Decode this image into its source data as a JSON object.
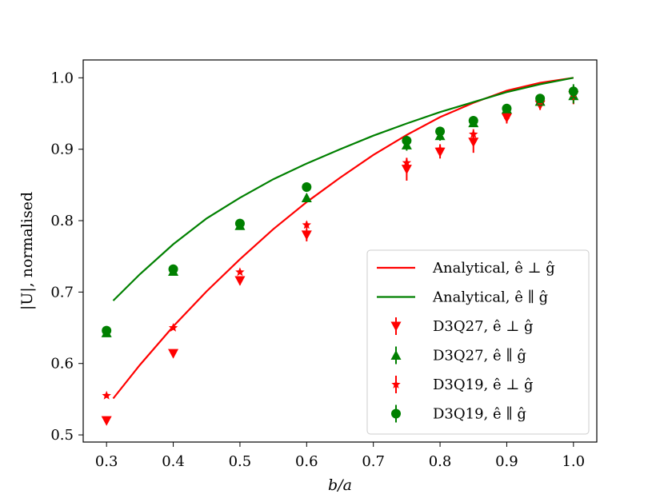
{
  "chart_data": {
    "type": "scatter",
    "title": "",
    "xlabel": "b/a",
    "ylabel": "|U|, normalised",
    "xlim": [
      0.265,
      1.035
    ],
    "ylim": [
      0.49,
      1.025
    ],
    "xticks": [
      0.3,
      0.4,
      0.5,
      0.6,
      0.7,
      0.8,
      0.9,
      1.0
    ],
    "yticks": [
      0.5,
      0.6,
      0.7,
      0.8,
      0.9,
      1.0
    ],
    "xtick_labels": [
      "0.3",
      "0.4",
      "0.5",
      "0.6",
      "0.7",
      "0.8",
      "0.9",
      "1.0"
    ],
    "ytick_labels": [
      "0.5",
      "0.6",
      "0.7",
      "0.8",
      "0.9",
      "1.0"
    ],
    "legend_position": "lower-right",
    "colors": {
      "red": "#ff0000",
      "green": "#008000"
    },
    "lines": [
      {
        "name": "Analytical, ê ⊥ ĝ",
        "color": "#ff0000",
        "x": [
          0.31,
          0.35,
          0.4,
          0.45,
          0.5,
          0.55,
          0.6,
          0.65,
          0.7,
          0.75,
          0.8,
          0.85,
          0.9,
          0.95,
          1.0
        ],
        "y": [
          0.551,
          0.598,
          0.652,
          0.701,
          0.746,
          0.788,
          0.826,
          0.86,
          0.892,
          0.92,
          0.945,
          0.965,
          0.982,
          0.993,
          1.0
        ]
      },
      {
        "name": "Analytical, ê ∥ ĝ",
        "color": "#008000",
        "x": [
          0.31,
          0.35,
          0.4,
          0.45,
          0.5,
          0.55,
          0.6,
          0.65,
          0.7,
          0.75,
          0.8,
          0.85,
          0.9,
          0.95,
          1.0
        ],
        "y": [
          0.688,
          0.725,
          0.767,
          0.803,
          0.832,
          0.858,
          0.88,
          0.9,
          0.919,
          0.936,
          0.952,
          0.966,
          0.98,
          0.991,
          1.0
        ]
      }
    ],
    "series": [
      {
        "name": "D3Q27, ê ⊥ ĝ",
        "color": "#ff0000",
        "marker": "triangle-down",
        "x": [
          0.3,
          0.4,
          0.5,
          0.6,
          0.75,
          0.8,
          0.85,
          0.9,
          0.95,
          1.0
        ],
        "y": [
          0.52,
          0.614,
          0.716,
          0.78,
          0.872,
          0.896,
          0.91,
          0.944,
          0.962,
          0.975
        ],
        "err": [
          0,
          0,
          0.006,
          0.009,
          0.016,
          0.009,
          0.015,
          0.008,
          0.007,
          0.012
        ]
      },
      {
        "name": "D3Q27, ê ∥ ĝ",
        "color": "#008000",
        "marker": "triangle-up",
        "x": [
          0.3,
          0.4,
          0.5,
          0.6,
          0.75,
          0.8,
          0.85,
          0.9,
          0.95,
          1.0
        ],
        "y": [
          0.643,
          0.729,
          0.793,
          0.832,
          0.906,
          0.919,
          0.937,
          0.956,
          0.967,
          0.975
        ],
        "err": [
          0,
          0,
          0,
          0,
          0.008,
          0.007,
          0.006,
          0.006,
          0.006,
          0.011
        ]
      },
      {
        "name": "D3Q19, ê ⊥ ĝ",
        "color": "#ff0000",
        "marker": "star",
        "x": [
          0.3,
          0.4,
          0.5,
          0.6,
          0.75,
          0.8,
          0.85,
          0.9,
          0.95,
          1.0
        ],
        "y": [
          0.555,
          0.65,
          0.728,
          0.794,
          0.881,
          0.9,
          0.921,
          0.948,
          0.967,
          0.978
        ],
        "err": [
          0,
          0,
          0,
          0.005,
          0.006,
          0.007,
          0.007,
          0.006,
          0.005,
          0.009
        ]
      },
      {
        "name": "D3Q19, ê ∥ ĝ",
        "color": "#008000",
        "marker": "circle",
        "x": [
          0.3,
          0.4,
          0.5,
          0.6,
          0.75,
          0.8,
          0.85,
          0.9,
          0.95,
          1.0
        ],
        "y": [
          0.646,
          0.732,
          0.796,
          0.847,
          0.912,
          0.925,
          0.94,
          0.957,
          0.971,
          0.981
        ],
        "err": [
          0,
          0,
          0,
          0,
          0.007,
          0.006,
          0.005,
          0.005,
          0.006,
          0.01
        ]
      }
    ]
  }
}
